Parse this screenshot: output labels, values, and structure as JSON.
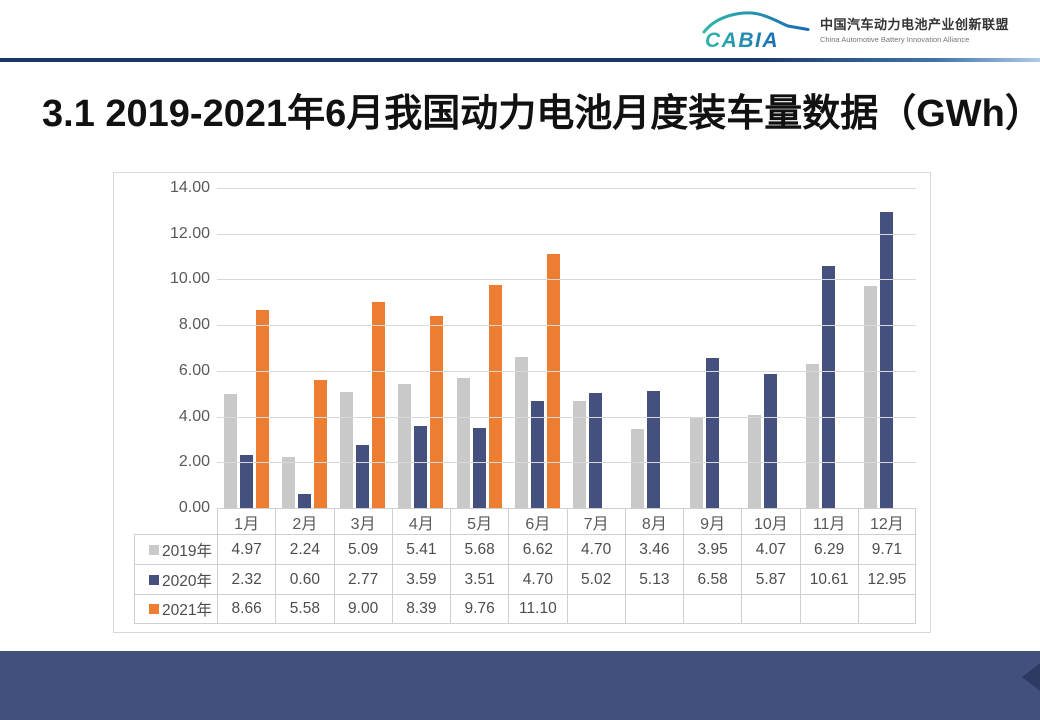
{
  "header": {
    "logo": {
      "brand": "CABIA",
      "name_zh": "中国汽车动力电池产业创新联盟",
      "name_en": "China Automotive Battery Innovation Alliance",
      "brand_color_start": "#2FB7A8",
      "brand_color_end": "#1A6AB4"
    },
    "divider_colors": [
      "#1B3764",
      "#1B3764",
      "#4472A8",
      "#AFCBE6"
    ]
  },
  "title": "3.1 2019-2021年6月我国动力电池月度装车量数据（GWh）",
  "chart_data": {
    "type": "bar",
    "title": "3.1 2019-2021年6月我国动力电池月度装车量数据（GWh）",
    "categories": [
      "1月",
      "2月",
      "3月",
      "4月",
      "5月",
      "6月",
      "7月",
      "8月",
      "9月",
      "10月",
      "11月",
      "12月"
    ],
    "series": [
      {
        "name": "2019年",
        "color": "#C9C9C9",
        "values": [
          4.97,
          2.24,
          5.09,
          5.41,
          5.68,
          6.62,
          4.7,
          3.46,
          3.95,
          4.07,
          6.29,
          9.71
        ]
      },
      {
        "name": "2020年",
        "color": "#44507E",
        "values": [
          2.32,
          0.6,
          2.77,
          3.59,
          3.51,
          4.7,
          5.02,
          5.13,
          6.58,
          5.87,
          10.61,
          12.95
        ]
      },
      {
        "name": "2021年",
        "color": "#ED7D31",
        "values": [
          8.66,
          5.58,
          9.0,
          8.39,
          9.76,
          11.1,
          null,
          null,
          null,
          null,
          null,
          null
        ]
      }
    ],
    "xlabel": "",
    "ylabel": "",
    "ylim": [
      0,
      14
    ],
    "ytick_step": 2,
    "ytick_labels": [
      "0.00",
      "2.00",
      "4.00",
      "6.00",
      "8.00",
      "10.00",
      "12.00",
      "14.00"
    ],
    "grid": true,
    "legend_position": "table-left",
    "value_table": true
  },
  "footer": {
    "color": "#42507E",
    "corner_color": "#2E3A63"
  }
}
